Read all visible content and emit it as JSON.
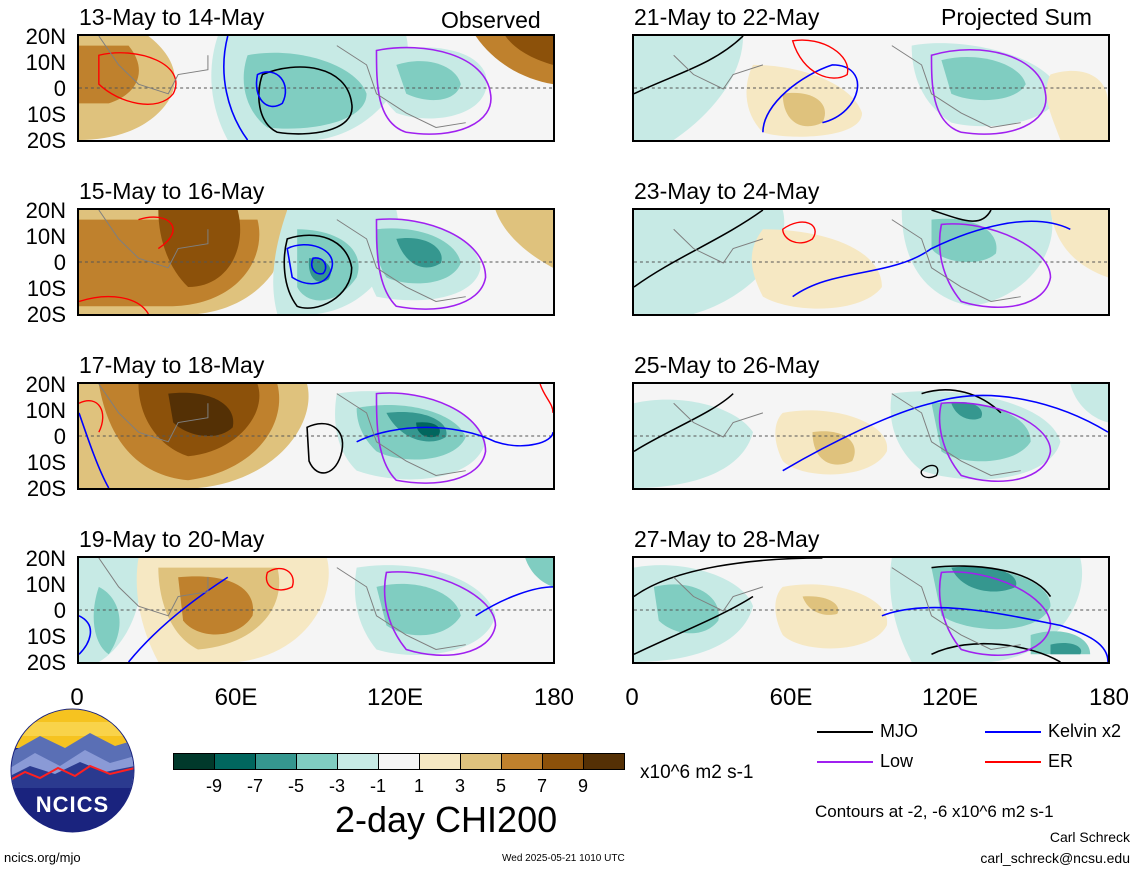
{
  "panels": [
    {
      "title": "13-May to 14-May",
      "corner": "Observed"
    },
    {
      "title": "21-May to 22-May",
      "corner": "Projected Sum"
    },
    {
      "title": "15-May to 16-May",
      "corner": ""
    },
    {
      "title": "23-May to 24-May",
      "corner": ""
    },
    {
      "title": "17-May to 18-May",
      "corner": ""
    },
    {
      "title": "25-May to 26-May",
      "corner": ""
    },
    {
      "title": "19-May to 20-May",
      "corner": ""
    },
    {
      "title": "27-May to 28-May",
      "corner": ""
    }
  ],
  "lat_labels": [
    "20N",
    "10N",
    "0",
    "10S",
    "20S"
  ],
  "lon_labels": [
    "0",
    "60E",
    "120E",
    "180"
  ],
  "legend": {
    "mjo": "MJO",
    "kelvin": "Kelvin x2",
    "low": "Low",
    "er": "ER",
    "contours_note": "Contours at -2, -6 x10^6 m2 s-1"
  },
  "colorbar": {
    "labels": [
      "-9",
      "-7",
      "-5",
      "-3",
      "-1",
      "1",
      "3",
      "5",
      "7",
      "9"
    ],
    "colors": [
      "#01392b",
      "#01665e",
      "#35978f",
      "#80cdc1",
      "#c7eae5",
      "#f5f5f5",
      "#f6e8c3",
      "#dfc27d",
      "#bf812d",
      "#8c510a",
      "#543005"
    ],
    "units": "x10^6 m2 s-1",
    "title": "2-day CHI200"
  },
  "logo": {
    "text": "NCICS"
  },
  "footer": {
    "url": "ncics.org/mjo",
    "timestamp": "Wed 2025-05-21 1010 UTC",
    "author": "Carl Schreck",
    "email": "carl_schreck@ncsu.edu"
  },
  "colors": {
    "mjo": "#000000",
    "kelvin": "#0000ff",
    "low": "#a020f0",
    "er": "#ff0000",
    "coast": "#7f7f7f"
  }
}
